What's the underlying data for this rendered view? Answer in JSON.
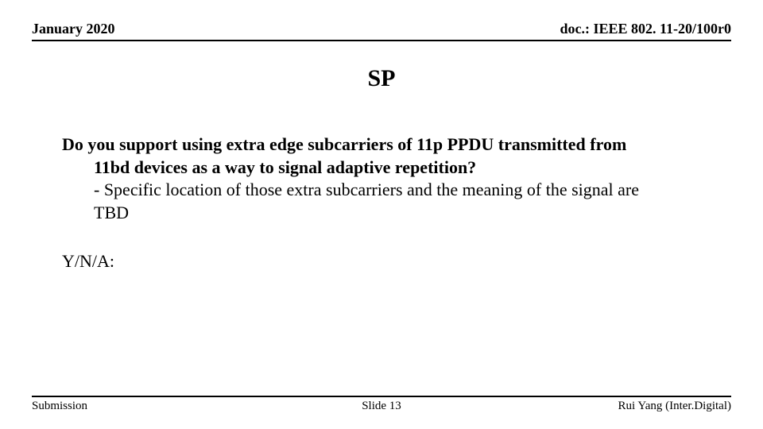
{
  "header": {
    "date": "January 2020",
    "docref": "doc.: IEEE 802. 11-20/100r0"
  },
  "title": "SP",
  "question": {
    "line1": "Do you support using extra edge subcarriers of 11p PPDU transmitted from",
    "line2": "11bd devices as a way to signal adaptive repetition?",
    "detail1": "- Specific location of those extra subcarriers and the meaning of the signal are",
    "detail2": "TBD"
  },
  "yna": "Y/N/A:",
  "footer": {
    "left": "Submission",
    "center": "Slide 13",
    "right": "Rui Yang (Inter.Digital)"
  },
  "colors": {
    "background": "#ffffff",
    "text": "#000000",
    "rule": "#000000"
  }
}
